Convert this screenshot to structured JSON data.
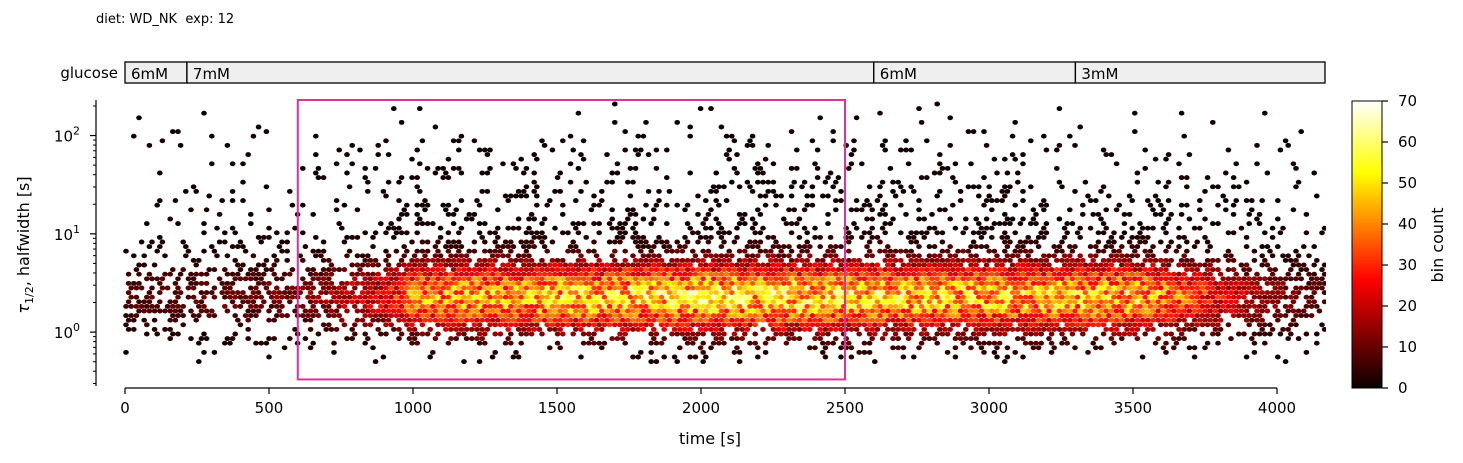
{
  "header": {
    "title": "diet: WD_NK  exp: 12"
  },
  "glucose_bar": {
    "label": "glucose",
    "segments": [
      {
        "label": "6mM",
        "start": 0,
        "end": 215
      },
      {
        "label": "7mM",
        "start": 215,
        "end": 2600
      },
      {
        "label": "6mM",
        "start": 2600,
        "end": 3300
      },
      {
        "label": "3mM",
        "start": 3300,
        "end": 4167
      }
    ]
  },
  "chart_data": {
    "type": "heatmap",
    "subtype": "hexbin",
    "xlabel": "time [s]",
    "ylabel_main": "τ",
    "ylabel_sub": "1/2",
    "ylabel_rest": ", halfwidth [s]",
    "xlim": [
      0,
      4167
    ],
    "ylim": [
      0.27,
      230
    ],
    "yscale": "log",
    "xticks": [
      0,
      500,
      1000,
      1500,
      2000,
      2500,
      3000,
      3500,
      4000
    ],
    "xtick_labels": [
      "0",
      "500",
      "1000",
      "1500",
      "2000",
      "2500",
      "3000",
      "3500",
      "4000"
    ],
    "yticks": [
      1,
      10,
      100
    ],
    "ytick_labels_base": [
      "10",
      "10",
      "10"
    ],
    "ytick_labels_exp": [
      "0",
      "1",
      "2"
    ],
    "highlight_box": {
      "x": [
        600,
        2500
      ],
      "y": [
        0.33,
        230
      ],
      "color": "#dd3399"
    },
    "colormap": "hot",
    "density_profile": {
      "time_knots": [
        0,
        600,
        900,
        1000,
        1500,
        2000,
        2500,
        3000,
        3500,
        3950,
        4167
      ],
      "relative_density": [
        0.12,
        0.18,
        0.45,
        0.8,
        0.9,
        1.0,
        0.95,
        0.9,
        0.9,
        0.25,
        0.12
      ]
    },
    "colorbar": {
      "label": "bin count",
      "min": 0,
      "max": 70,
      "ticks": [
        0,
        10,
        20,
        30,
        40,
        50,
        60,
        70
      ],
      "tick_labels": [
        "0",
        "10",
        "20",
        "30",
        "40",
        "50",
        "60",
        "70"
      ]
    }
  }
}
